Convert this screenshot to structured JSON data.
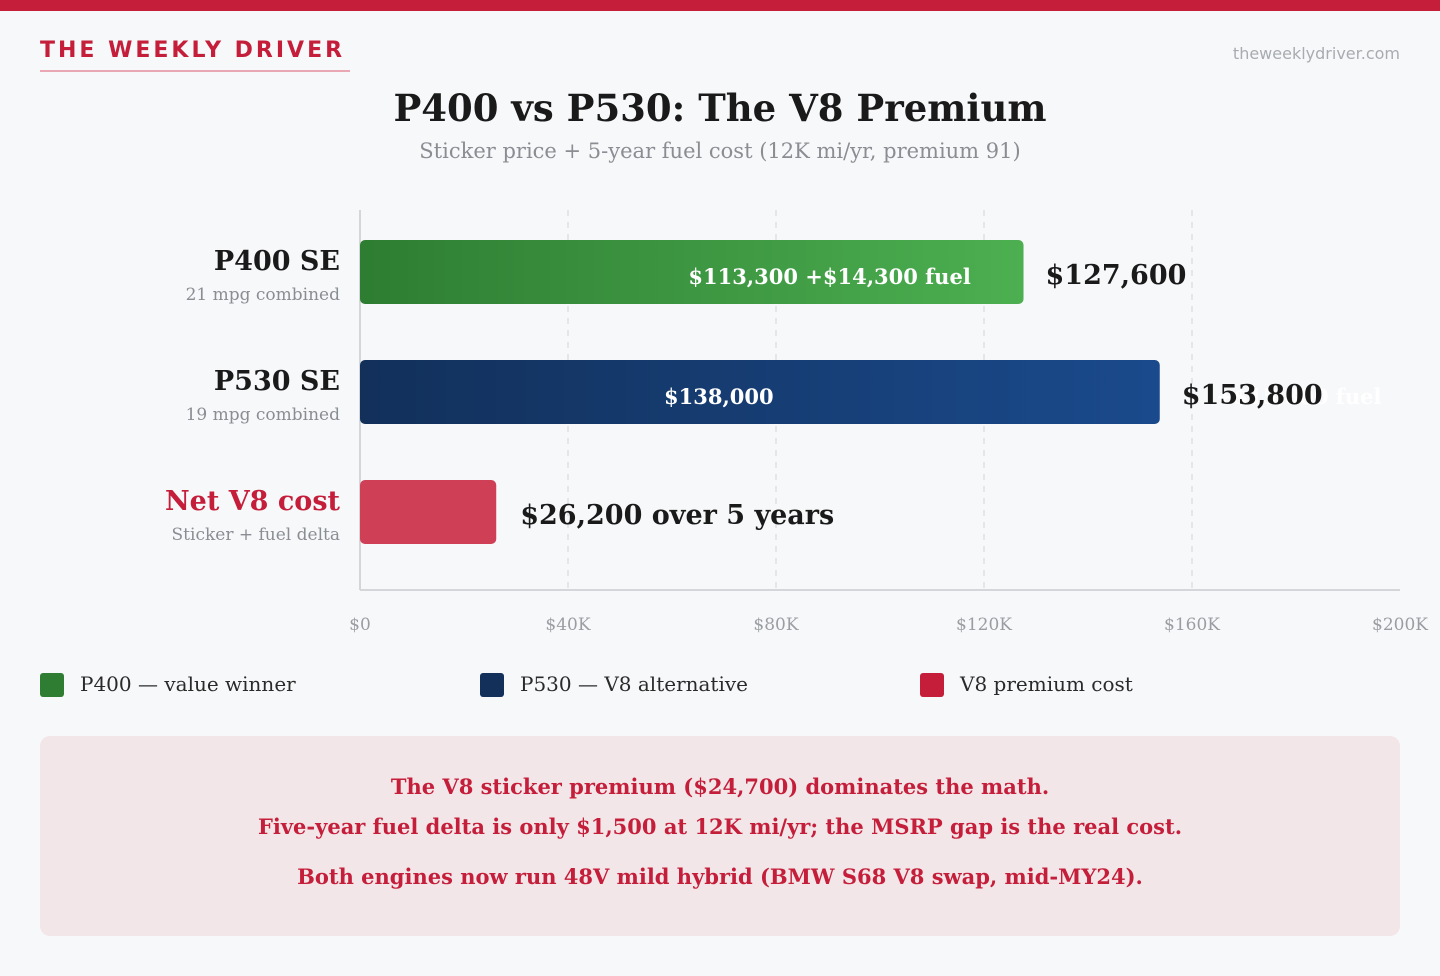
{
  "header": {
    "brand": "THE WEEKLY DRIVER",
    "site": "theweeklydriver.com"
  },
  "chart_data": {
    "type": "bar",
    "orientation": "horizontal",
    "stacked": true,
    "title": "P400 vs P530: The V8 Premium",
    "subtitle": "Sticker price + 5-year fuel cost (12K mi/yr, premium 91)",
    "xlim": [
      0,
      200000
    ],
    "x_ticks": [
      {
        "value": 0,
        "label": "$0"
      },
      {
        "value": 40000,
        "label": "$40K"
      },
      {
        "value": 80000,
        "label": "$80K"
      },
      {
        "value": 120000,
        "label": "$120K"
      },
      {
        "value": 160000,
        "label": "$160K"
      },
      {
        "value": 200000,
        "label": "$200K"
      }
    ],
    "grid": true,
    "rows": [
      {
        "name": "P400 SE",
        "sub": "21 mpg combined",
        "series": "P400 — value winner",
        "sticker": 113300,
        "fuel": 14300,
        "total": 127600,
        "segment_label": "$113,300  +$14,300 fuel",
        "total_label": "$127,600"
      },
      {
        "name": "P530 SE",
        "sub": "19 mpg combined",
        "series": "P530 — V8 alternative",
        "sticker": 138000,
        "fuel": 15800,
        "total": 153800,
        "sticker_label": "$138,000",
        "fuel_label": "+$15,800 fuel",
        "total_label": "$153,800"
      },
      {
        "name": "Net V8 cost",
        "sub": "Sticker + fuel delta",
        "series": "V8 premium cost",
        "total": 26200,
        "total_label": "$26,200 over 5 years"
      }
    ],
    "legend": {
      "placement": "bottom",
      "items": [
        {
          "label": "P400 — value winner",
          "color": "#2e7d32"
        },
        {
          "label": "P530 — V8 alternative",
          "color": "#12305a"
        },
        {
          "label": "V8 premium cost",
          "color": "#c41e3a"
        }
      ]
    },
    "colors": {
      "p400_start": "#2e7d32",
      "p400_end": "#4caf50",
      "p530_start": "#12305a",
      "p530_end": "#1a4a8c",
      "net": "#cf4057",
      "accent": "#c41e3a"
    }
  },
  "note": {
    "lines": [
      "The V8 sticker premium ($24,700) dominates the math.",
      "Five-year fuel delta is only $1,500 at 12K mi/yr; the MSRP gap is the real cost.",
      "Both engines now run 48V mild hybrid (BMW S68 V8 swap, mid-MY24)."
    ]
  }
}
